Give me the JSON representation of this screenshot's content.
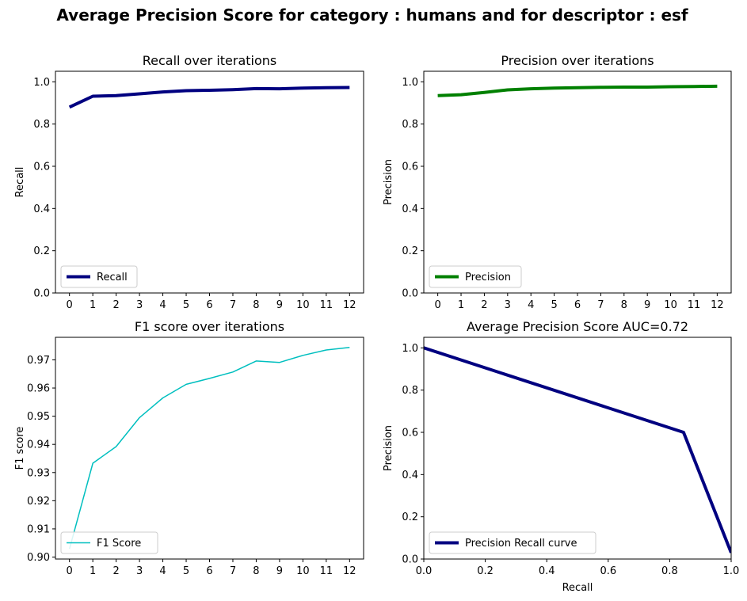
{
  "suptitle": "Average Precision Score for category : humans and for descriptor : esf",
  "chart_data": [
    {
      "type": "line",
      "title": "Recall over iterations",
      "xlabel": "",
      "ylabel": "Recall",
      "x": [
        0,
        1,
        2,
        3,
        4,
        5,
        6,
        7,
        8,
        9,
        10,
        11,
        12
      ],
      "series": [
        {
          "name": "Recall",
          "color": "#000080",
          "linewidth": 4,
          "values": [
            0.88,
            0.932,
            0.935,
            0.943,
            0.952,
            0.958,
            0.96,
            0.963,
            0.968,
            0.967,
            0.97,
            0.972,
            0.973
          ]
        }
      ],
      "xlim": [
        -0.6,
        12.6
      ],
      "ylim": [
        0.0,
        1.05
      ],
      "xticks": [
        "0",
        "1",
        "2",
        "3",
        "4",
        "5",
        "6",
        "7",
        "8",
        "9",
        "10",
        "11",
        "12"
      ],
      "yticks": [
        "0.0",
        "0.2",
        "0.4",
        "0.6",
        "0.8",
        "1.0"
      ],
      "legend": "lower-left",
      "grid": false
    },
    {
      "type": "line",
      "title": "Precision over iterations",
      "xlabel": "",
      "ylabel": "Precision",
      "x": [
        0,
        1,
        2,
        3,
        4,
        5,
        6,
        7,
        8,
        9,
        10,
        11,
        12
      ],
      "series": [
        {
          "name": "Precision",
          "color": "#008000",
          "linewidth": 4,
          "values": [
            0.935,
            0.939,
            0.95,
            0.962,
            0.967,
            0.97,
            0.972,
            0.974,
            0.975,
            0.975,
            0.977,
            0.978,
            0.979
          ]
        }
      ],
      "xlim": [
        -0.6,
        12.6
      ],
      "ylim": [
        0.0,
        1.05
      ],
      "xticks": [
        "0",
        "1",
        "2",
        "3",
        "4",
        "5",
        "6",
        "7",
        "8",
        "9",
        "10",
        "11",
        "12"
      ],
      "yticks": [
        "0.0",
        "0.2",
        "0.4",
        "0.6",
        "0.8",
        "1.0"
      ],
      "legend": "lower-left",
      "grid": false
    },
    {
      "type": "line",
      "title": "F1 score over iterations",
      "xlabel": "",
      "ylabel": "F1 score",
      "x": [
        0,
        1,
        2,
        3,
        4,
        5,
        6,
        7,
        8,
        9,
        10,
        11,
        12
      ],
      "series": [
        {
          "name": "F1 Score",
          "color": "#00bfbf",
          "linewidth": 1.5,
          "values": [
            0.9029,
            0.9333,
            0.9392,
            0.9495,
            0.9565,
            0.9613,
            0.9634,
            0.9657,
            0.9696,
            0.9691,
            0.9716,
            0.9735,
            0.9744
          ]
        }
      ],
      "xlim": [
        -0.6,
        12.6
      ],
      "ylim": [
        0.8993,
        0.978
      ],
      "xticks": [
        "0",
        "1",
        "2",
        "3",
        "4",
        "5",
        "6",
        "7",
        "8",
        "9",
        "10",
        "11",
        "12"
      ],
      "ytick_values": [
        0.9,
        0.91,
        0.92,
        0.93,
        0.94,
        0.95,
        0.96,
        0.97
      ],
      "yticks": [
        "0.90",
        "0.91",
        "0.92",
        "0.93",
        "0.94",
        "0.95",
        "0.96",
        "0.97"
      ],
      "legend": "lower-left",
      "grid": false
    },
    {
      "type": "line",
      "title": "Average Precision Score AUC=0.72",
      "xlabel": "Recall",
      "ylabel": "Precision",
      "x": [
        0.0,
        0.845,
        1.0
      ],
      "series": [
        {
          "name": "Precision Recall curve",
          "color": "#000080",
          "linewidth": 4,
          "values": [
            1.0,
            0.6,
            0.03
          ]
        }
      ],
      "xlim": [
        0.0,
        1.0
      ],
      "ylim": [
        0.0,
        1.05
      ],
      "xticks": [
        "0.0",
        "0.2",
        "0.4",
        "0.6",
        "0.8",
        "1.0"
      ],
      "yticks": [
        "0.0",
        "0.2",
        "0.4",
        "0.6",
        "0.8",
        "1.0"
      ],
      "legend": "lower-left",
      "grid": false
    }
  ]
}
